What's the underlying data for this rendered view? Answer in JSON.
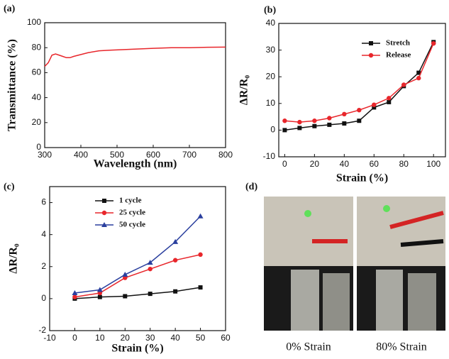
{
  "chart_data": [
    {
      "type": "line",
      "label": "(a)",
      "xlabel": "Wavelength (nm)",
      "ylabel": "Transmittance (%)",
      "xlim": [
        300,
        800
      ],
      "xticks": [
        300,
        400,
        500,
        600,
        700,
        800
      ],
      "ylim": [
        0,
        100
      ],
      "yticks": [
        0,
        20,
        40,
        60,
        80,
        100
      ],
      "x": [
        300,
        310,
        320,
        330,
        340,
        350,
        360,
        370,
        380,
        400,
        420,
        450,
        480,
        520,
        560,
        600,
        650,
        700,
        750,
        800
      ],
      "series": [
        {
          "color": "#e8262b",
          "marker": "none",
          "values": [
            65,
            68,
            74,
            75,
            74,
            73,
            72,
            72,
            73,
            74.5,
            76,
            77.5,
            78,
            78.5,
            79,
            79.5,
            80,
            80,
            80.3,
            80.5
          ]
        }
      ]
    },
    {
      "type": "line",
      "label": "(b)",
      "xlabel": "Strain (%)",
      "ylabel": "ΔR/R₀",
      "xlim": [
        -4,
        108
      ],
      "xticks": [
        0,
        20,
        40,
        60,
        80,
        100
      ],
      "ylim": [
        -10,
        40
      ],
      "yticks": [
        -10,
        0,
        10,
        20,
        30,
        40
      ],
      "legend": "upper right",
      "x": [
        0,
        10,
        20,
        30,
        40,
        50,
        60,
        70,
        80,
        90,
        100
      ],
      "series": [
        {
          "name": "Stretch",
          "color": "#111111",
          "marker": "square",
          "values": [
            0,
            0.8,
            1.5,
            2,
            2.5,
            3.5,
            8.5,
            10.5,
            16.5,
            21.5,
            33
          ]
        },
        {
          "name": "Release",
          "color": "#e8262b",
          "marker": "circle",
          "values": [
            3.5,
            3,
            3.5,
            4.5,
            6,
            7.5,
            9.5,
            12,
            17,
            19.5,
            32.5
          ]
        }
      ]
    },
    {
      "type": "line",
      "label": "(c)",
      "xlabel": "Strain (%)",
      "ylabel": "ΔR/R₀",
      "xlim": [
        -10,
        60
      ],
      "xticks": [
        -10,
        0,
        10,
        20,
        30,
        40,
        50,
        60
      ],
      "ylim": [
        -2,
        7
      ],
      "yticks": [
        -2,
        0,
        2,
        4,
        6
      ],
      "legend": "upper center",
      "x": [
        0,
        10,
        20,
        30,
        40,
        50
      ],
      "series": [
        {
          "name": "1 cycle",
          "color": "#111111",
          "marker": "square",
          "values": [
            0,
            0.1,
            0.15,
            0.3,
            0.45,
            0.7
          ]
        },
        {
          "name": "25 cycle",
          "color": "#e8262b",
          "marker": "circle",
          "values": [
            0.1,
            0.35,
            1.3,
            1.85,
            2.4,
            2.75
          ]
        },
        {
          "name": "50 cycle",
          "color": "#2a3f9e",
          "marker": "triangle",
          "values": [
            0.35,
            0.55,
            1.5,
            2.25,
            3.55,
            5.15
          ]
        }
      ]
    }
  ],
  "photo": {
    "label": "(d)",
    "captions": [
      "0% Strain",
      "80% Strain"
    ]
  }
}
